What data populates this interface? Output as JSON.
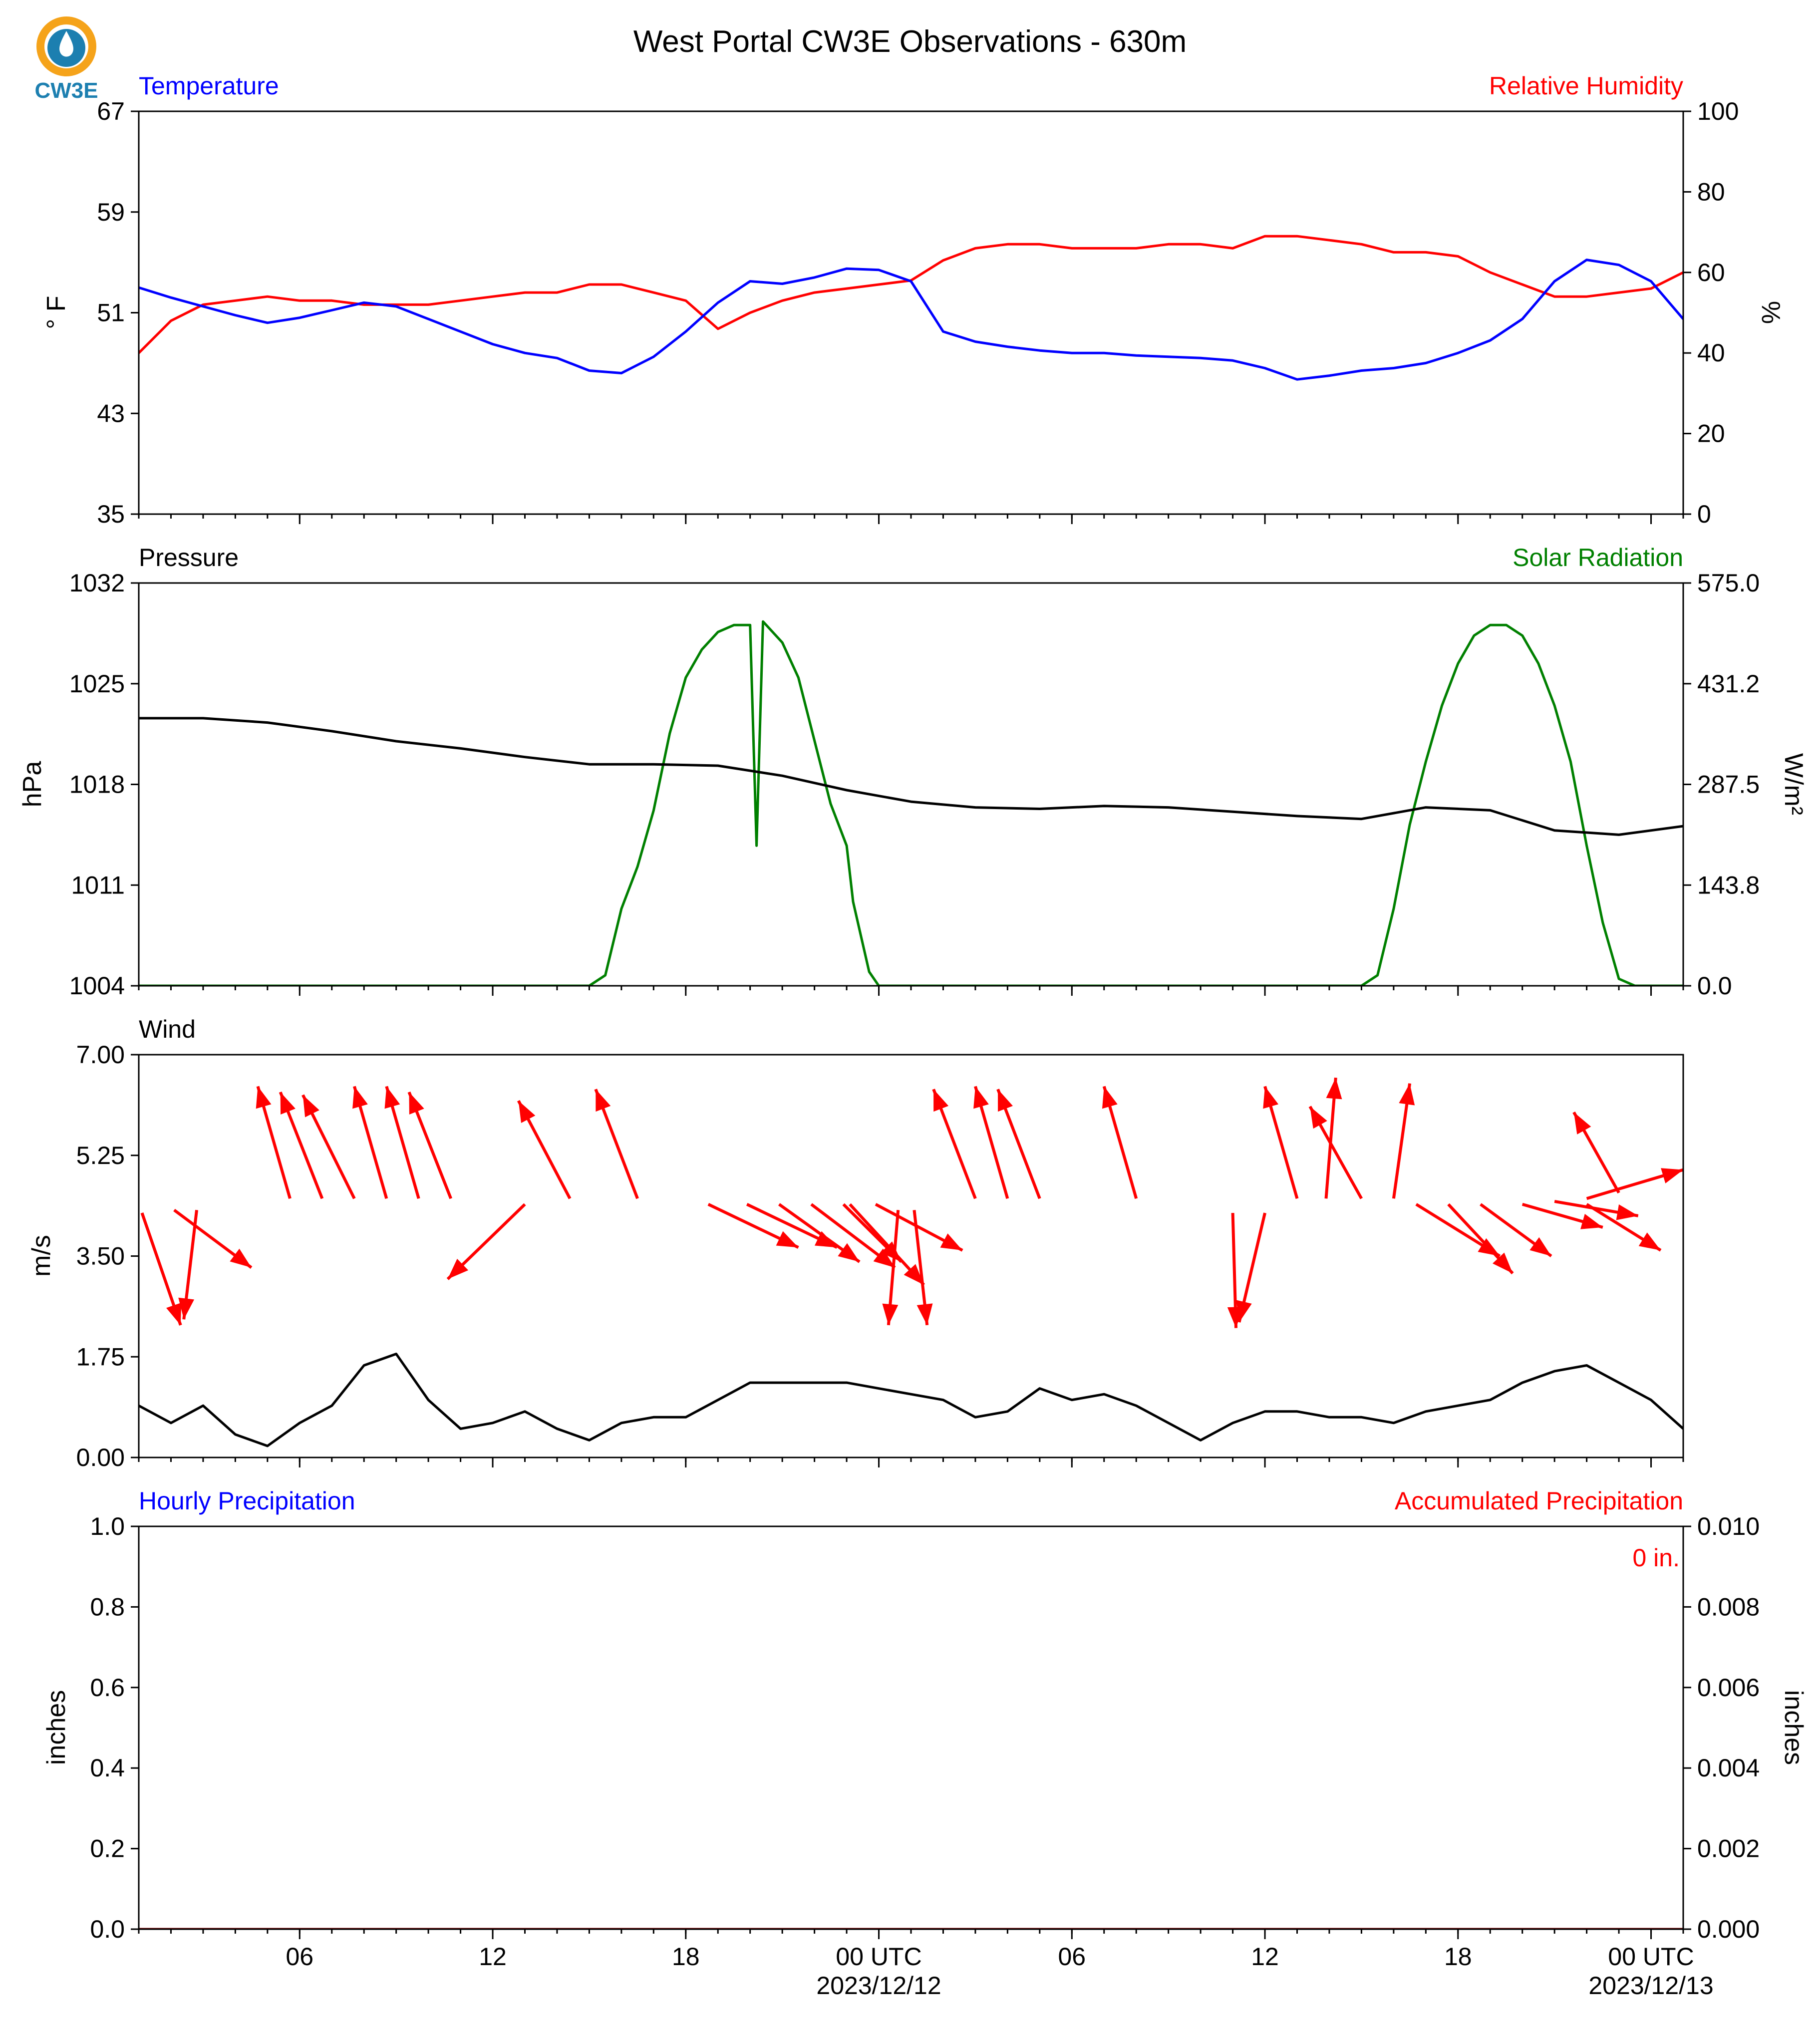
{
  "title": "West Portal CW3E Observations - 630m",
  "logo": {
    "text": "CW3E",
    "icon": "cw3e-logo-icon",
    "colors": {
      "ring": "#f5a31a",
      "drop": "#1c7fb0"
    }
  },
  "colors": {
    "temperature": "#0000ff",
    "humidity": "#ff0000",
    "pressure": "#000000",
    "solar": "#008000",
    "wind": "#000000",
    "wind_arrows": "#ff0000",
    "hourly_precip": "#0000ff",
    "accum_precip": "#ff0000"
  },
  "x_axis": {
    "range_hours": [
      0,
      48
    ],
    "ticks": [
      {
        "h": 5,
        "label": "06"
      },
      {
        "h": 11,
        "label": "12"
      },
      {
        "h": 17,
        "label": "18"
      },
      {
        "h": 23,
        "label": "00 UTC",
        "date": "2023/12/12"
      },
      {
        "h": 29,
        "label": "06"
      },
      {
        "h": 35,
        "label": "12"
      },
      {
        "h": 41,
        "label": "18"
      },
      {
        "h": 47,
        "label": "00 UTC",
        "date": "2023/12/13"
      }
    ],
    "minor_step_hours": 1
  },
  "panels": {
    "temp_rh": {
      "left_label": "Temperature",
      "right_label": "Relative Humidity",
      "left_ylabel": "° F",
      "right_ylabel": "%",
      "left_ticks": [
        "35",
        "43",
        "51",
        "59",
        "67"
      ],
      "right_ticks": [
        "0",
        "20",
        "40",
        "60",
        "80",
        "100"
      ]
    },
    "pressure_solar": {
      "left_label": "Pressure",
      "right_label": "Solar Radiation",
      "left_ylabel": "hPa",
      "right_ylabel": "W/m²",
      "left_ticks": [
        "1004",
        "1011",
        "1018",
        "1025",
        "1032"
      ],
      "right_ticks": [
        "0.0",
        "143.8",
        "287.5",
        "431.2",
        "575.0"
      ]
    },
    "wind": {
      "left_label": "Wind",
      "left_ylabel": "m/s",
      "left_ticks": [
        "0.00",
        "1.75",
        "3.50",
        "5.25",
        "7.00"
      ]
    },
    "precip": {
      "left_label": "Hourly Precipitation",
      "right_label": "Accumulated Precipitation",
      "left_ylabel": "inches",
      "right_ylabel": "inches",
      "left_ticks": [
        "0.0",
        "0.2",
        "0.4",
        "0.6",
        "0.8",
        "1.0"
      ],
      "right_ticks": [
        "0.000",
        "0.002",
        "0.004",
        "0.006",
        "0.008",
        "0.010"
      ],
      "annotation": "0 in."
    }
  },
  "chart_data": [
    {
      "type": "line",
      "title": "West Portal CW3E Observations - 630m",
      "xlabel": "",
      "series": [
        {
          "name": "Temperature",
          "axis": "left",
          "unit": "°F",
          "ylim": [
            35,
            67
          ],
          "x": [
            0,
            1,
            2,
            3,
            4,
            5,
            6,
            7,
            8,
            9,
            10,
            11,
            12,
            13,
            14,
            15,
            16,
            17,
            18,
            19,
            20,
            21,
            22,
            23,
            24,
            25,
            26,
            27,
            28,
            29,
            30,
            31,
            32,
            33,
            34,
            35,
            36,
            37,
            38,
            39,
            40,
            41,
            42,
            43,
            44,
            45,
            46,
            47,
            48
          ],
          "y": [
            53,
            52.2,
            51.5,
            50.8,
            50.2,
            50.6,
            51.2,
            51.8,
            51.5,
            50.5,
            49.5,
            48.5,
            47.8,
            47.4,
            46.4,
            46.2,
            47.5,
            49.5,
            51.8,
            53.5,
            53.3,
            53.8,
            54.5,
            54.4,
            53.5,
            49.5,
            48.7,
            48.3,
            48,
            47.8,
            47.8,
            47.6,
            47.5,
            47.4,
            47.2,
            46.6,
            45.7,
            46,
            46.4,
            46.6,
            47,
            47.8,
            48.8,
            50.5,
            53.5,
            55.2,
            54.8,
            53.5,
            50.5
          ]
        },
        {
          "name": "Relative Humidity",
          "axis": "right",
          "unit": "%",
          "ylim": [
            0,
            100
          ],
          "x": [
            0,
            1,
            2,
            3,
            4,
            5,
            6,
            7,
            8,
            9,
            10,
            11,
            12,
            13,
            14,
            15,
            16,
            17,
            18,
            19,
            20,
            21,
            22,
            23,
            24,
            25,
            26,
            27,
            28,
            29,
            30,
            31,
            32,
            33,
            34,
            35,
            36,
            37,
            38,
            39,
            40,
            41,
            42,
            43,
            44,
            45,
            46,
            47,
            48
          ],
          "y": [
            40,
            48,
            52,
            53,
            54,
            53,
            53,
            52,
            52,
            52,
            53,
            54,
            55,
            55,
            57,
            57,
            55,
            53,
            46,
            50,
            53,
            55,
            56,
            57,
            58,
            63,
            66,
            67,
            67,
            66,
            66,
            66,
            67,
            67,
            66,
            69,
            69,
            68,
            67,
            65,
            65,
            64,
            60,
            57,
            54,
            54,
            55,
            56,
            60
          ]
        },
        {
          "name": "Pressure",
          "axis": "left",
          "unit": "hPa",
          "ylim": [
            1004,
            1032
          ],
          "x": [
            0,
            2,
            4,
            6,
            8,
            10,
            12,
            14,
            16,
            18,
            20,
            22,
            24,
            26,
            28,
            30,
            32,
            34,
            36,
            38,
            40,
            42,
            44,
            46,
            48
          ],
          "y": [
            1022.6,
            1022.6,
            1022.3,
            1021.7,
            1021,
            1020.5,
            1019.9,
            1019.4,
            1019.4,
            1019.3,
            1018.6,
            1017.6,
            1016.8,
            1016.4,
            1016.3,
            1016.5,
            1016.4,
            1016.1,
            1015.8,
            1015.6,
            1016.4,
            1016.2,
            1014.8,
            1014.5,
            1015.1
          ]
        },
        {
          "name": "Solar Radiation",
          "axis": "right",
          "unit": "W/m²",
          "ylim": [
            0,
            575
          ],
          "x": [
            0,
            14,
            14.5,
            15,
            15.5,
            16,
            16.5,
            17,
            17.5,
            18,
            18.5,
            19,
            19.2,
            19.4,
            19.6,
            20,
            20.5,
            21,
            21.5,
            22,
            22.2,
            22.5,
            22.7,
            23,
            23.2,
            24,
            38,
            38.5,
            39,
            39.5,
            40,
            40.5,
            41,
            41.5,
            42,
            42.5,
            43,
            43.5,
            44,
            44.5,
            45,
            45.5,
            46,
            46.5,
            47,
            47.5,
            48
          ],
          "y": [
            0,
            0,
            15,
            110,
            170,
            250,
            360,
            440,
            480,
            505,
            515,
            515,
            200,
            520,
            510,
            490,
            440,
            350,
            260,
            200,
            120,
            60,
            20,
            0,
            0,
            0,
            0,
            15,
            110,
            230,
            320,
            400,
            460,
            500,
            515,
            515,
            500,
            460,
            400,
            320,
            200,
            90,
            10,
            0,
            0,
            0,
            0
          ]
        },
        {
          "name": "Wind",
          "axis": "left",
          "unit": "m/s",
          "ylim": [
            0,
            7
          ],
          "x": [
            0,
            1,
            2,
            3,
            4,
            5,
            6,
            7,
            8,
            9,
            10,
            11,
            12,
            13,
            14,
            15,
            16,
            17,
            18,
            19,
            20,
            21,
            22,
            23,
            24,
            25,
            26,
            27,
            28,
            29,
            30,
            31,
            32,
            33,
            34,
            35,
            36,
            37,
            38,
            39,
            40,
            41,
            42,
            43,
            44,
            45,
            46,
            47,
            48
          ],
          "y": [
            0.9,
            0.6,
            0.9,
            0.4,
            0.2,
            0.6,
            0.9,
            1.6,
            1.8,
            1.0,
            0.5,
            0.6,
            0.8,
            0.5,
            0.3,
            0.6,
            0.7,
            0.7,
            1.0,
            1.3,
            1.3,
            1.3,
            1.3,
            1.2,
            1.1,
            1.0,
            0.7,
            0.8,
            1.2,
            1.0,
            1.1,
            0.9,
            0.6,
            0.3,
            0.6,
            0.8,
            0.8,
            0.7,
            0.7,
            0.6,
            0.8,
            0.9,
            1.0,
            1.3,
            1.5,
            1.6,
            1.3,
            1.0,
            0.5
          ]
        },
        {
          "name": "Hourly Precipitation",
          "axis": "left",
          "unit": "inches",
          "ylim": [
            0,
            1
          ],
          "x": [
            0,
            48
          ],
          "y": [
            0,
            0
          ]
        },
        {
          "name": "Accumulated Precipitation",
          "axis": "right",
          "unit": "inches",
          "ylim": [
            0,
            0.01
          ],
          "x": [
            0,
            48
          ],
          "y": [
            0,
            0
          ]
        }
      ]
    },
    {
      "type": "scatter",
      "subtype": "wind-vectors",
      "xlabel": "",
      "ylabel": "m/s",
      "ylim": [
        0,
        7
      ],
      "xlim": [
        0,
        48
      ],
      "arrows": [
        {
          "x": 0.1,
          "y": 4.25,
          "dx": 1.2,
          "dy": -1.95
        },
        {
          "x": 1.8,
          "y": 4.3,
          "dx": -0.4,
          "dy": -1.9
        },
        {
          "x": 1.1,
          "y": 4.3,
          "dx": 2.4,
          "dy": -1.0
        },
        {
          "x": 4.7,
          "y": 4.5,
          "dx": -1.0,
          "dy": 1.95
        },
        {
          "x": 5.7,
          "y": 4.5,
          "dx": -1.3,
          "dy": 1.85
        },
        {
          "x": 6.7,
          "y": 4.5,
          "dx": -1.6,
          "dy": 1.8
        },
        {
          "x": 7.7,
          "y": 4.5,
          "dx": -1.0,
          "dy": 1.95
        },
        {
          "x": 8.7,
          "y": 4.5,
          "dx": -1.0,
          "dy": 1.95
        },
        {
          "x": 9.7,
          "y": 4.5,
          "dx": -1.3,
          "dy": 1.85
        },
        {
          "x": 12.0,
          "y": 4.4,
          "dx": -2.4,
          "dy": -1.3
        },
        {
          "x": 13.4,
          "y": 4.5,
          "dx": -1.6,
          "dy": 1.7
        },
        {
          "x": 15.5,
          "y": 4.5,
          "dx": -1.3,
          "dy": 1.9
        },
        {
          "x": 17.7,
          "y": 4.4,
          "dx": 2.8,
          "dy": -0.75
        },
        {
          "x": 18.9,
          "y": 4.4,
          "dx": 2.8,
          "dy": -0.75
        },
        {
          "x": 19.9,
          "y": 4.4,
          "dx": 2.5,
          "dy": -1.0
        },
        {
          "x": 20.9,
          "y": 4.4,
          "dx": 2.6,
          "dy": -1.1
        },
        {
          "x": 21.9,
          "y": 4.4,
          "dx": 1.8,
          "dy": -1.0
        },
        {
          "x": 22.1,
          "y": 4.4,
          "dx": 2.3,
          "dy": -1.4
        },
        {
          "x": 22.9,
          "y": 4.4,
          "dx": 2.7,
          "dy": -0.8
        },
        {
          "x": 23.6,
          "y": 4.3,
          "dx": -0.3,
          "dy": -2.0
        },
        {
          "x": 24.1,
          "y": 4.3,
          "dx": 0.4,
          "dy": -2.0
        },
        {
          "x": 26.0,
          "y": 4.5,
          "dx": -1.3,
          "dy": 1.9
        },
        {
          "x": 27.0,
          "y": 4.5,
          "dx": -1.0,
          "dy": 1.95
        },
        {
          "x": 28.0,
          "y": 4.5,
          "dx": -1.3,
          "dy": 1.9
        },
        {
          "x": 31.0,
          "y": 4.5,
          "dx": -1.0,
          "dy": 1.95
        },
        {
          "x": 34.0,
          "y": 4.25,
          "dx": 0.1,
          "dy": -2.0
        },
        {
          "x": 35.0,
          "y": 4.25,
          "dx": -0.8,
          "dy": -1.9
        },
        {
          "x": 36.0,
          "y": 4.5,
          "dx": -1.0,
          "dy": 1.95
        },
        {
          "x": 36.9,
          "y": 4.5,
          "dx": 0.3,
          "dy": 2.1
        },
        {
          "x": 38.0,
          "y": 4.5,
          "dx": -1.6,
          "dy": 1.6
        },
        {
          "x": 39.0,
          "y": 4.5,
          "dx": 0.5,
          "dy": 2.0
        },
        {
          "x": 39.7,
          "y": 4.4,
          "dx": 2.6,
          "dy": -0.9
        },
        {
          "x": 40.7,
          "y": 4.4,
          "dx": 2.0,
          "dy": -1.2
        },
        {
          "x": 41.7,
          "y": 4.4,
          "dx": 2.2,
          "dy": -0.9
        },
        {
          "x": 43.0,
          "y": 4.4,
          "dx": 2.5,
          "dy": -0.4
        },
        {
          "x": 44.0,
          "y": 4.45,
          "dx": 2.6,
          "dy": -0.25
        },
        {
          "x": 45.0,
          "y": 4.4,
          "dx": 2.3,
          "dy": -0.8
        },
        {
          "x": 46.0,
          "y": 4.6,
          "dx": -1.4,
          "dy": 1.4
        },
        {
          "x": 45.0,
          "y": 4.5,
          "dx": 3.0,
          "dy": 0.5
        }
      ]
    }
  ]
}
